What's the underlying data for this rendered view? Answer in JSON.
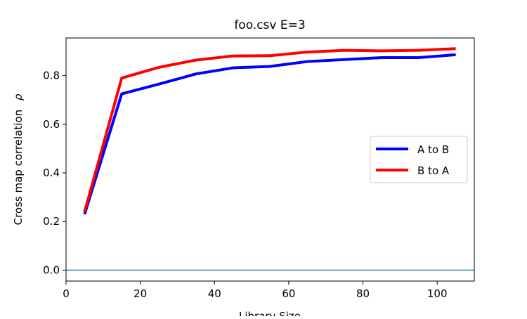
{
  "chart_data": {
    "type": "line",
    "title": "foo.csv  E=3",
    "xlabel": "Library Size",
    "ylabel": "Cross map correlation",
    "ylabel_symbol": "ρ",
    "xlim": [
      0,
      110
    ],
    "ylim": [
      -0.045,
      0.955
    ],
    "xticks": [
      0,
      20,
      40,
      60,
      80,
      100
    ],
    "yticks": [
      0.0,
      0.2,
      0.4,
      0.6,
      0.8
    ],
    "ytick_labels": [
      "0.0",
      "0.2",
      "0.4",
      "0.6",
      "0.8"
    ],
    "grid": false,
    "legend_position": "right",
    "reference_line": {
      "y": 0,
      "color": "#1f77b4"
    },
    "x": [
      5,
      15,
      25,
      35,
      45,
      55,
      65,
      75,
      85,
      95,
      105
    ],
    "series": [
      {
        "name": "A to B",
        "color": "#0000ff",
        "values": [
          0.23,
          0.725,
          0.765,
          0.807,
          0.832,
          0.838,
          0.858,
          0.866,
          0.874,
          0.874,
          0.886
        ]
      },
      {
        "name": "B to A",
        "color": "#ff0000",
        "values": [
          0.24,
          0.79,
          0.834,
          0.864,
          0.881,
          0.882,
          0.897,
          0.904,
          0.902,
          0.904,
          0.911
        ]
      }
    ]
  }
}
